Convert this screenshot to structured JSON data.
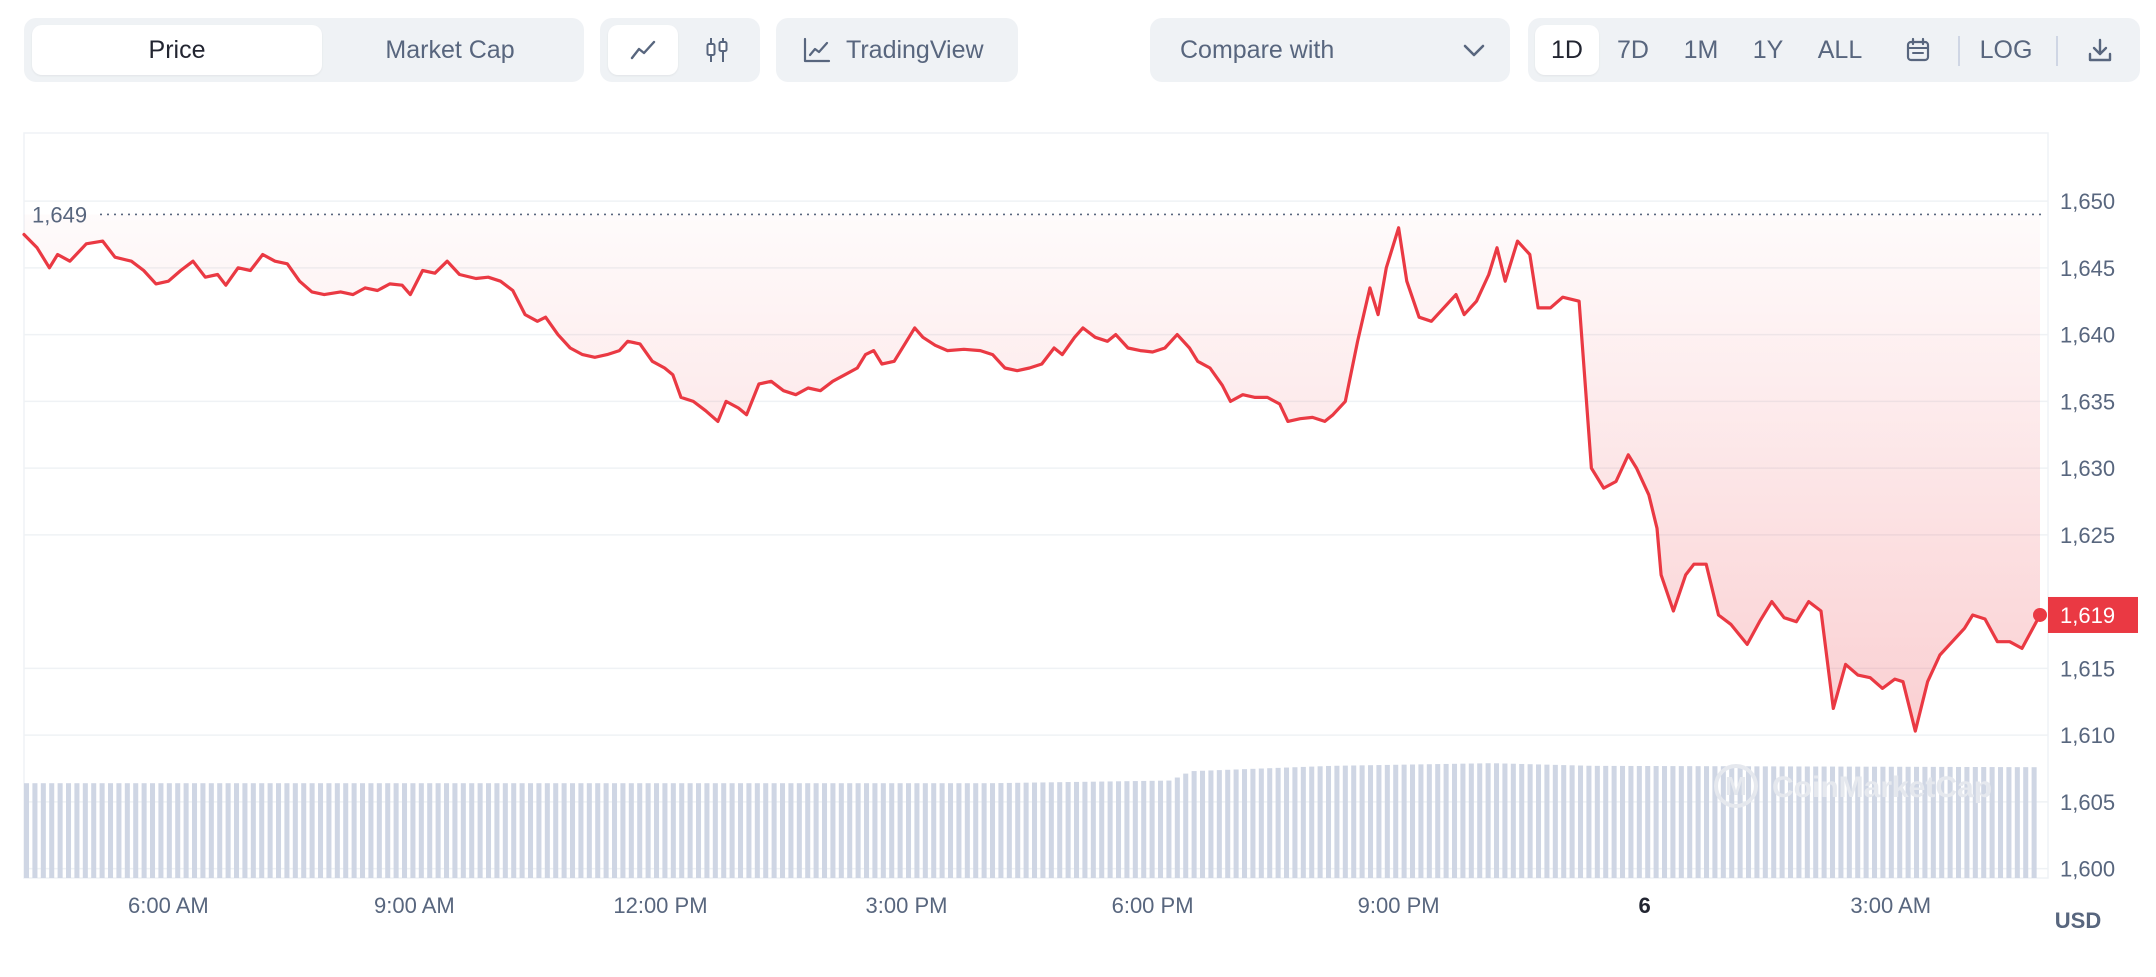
{
  "toolbar": {
    "metric_tabs": [
      {
        "label": "Price",
        "active": true
      },
      {
        "label": "Market Cap",
        "active": false
      }
    ],
    "chart_type_icons": [
      "line-chart-icon",
      "candlestick-icon"
    ],
    "tradingview_label": "TradingView",
    "compare_label": "Compare with",
    "ranges": [
      {
        "label": "1D",
        "active": true
      },
      {
        "label": "7D",
        "active": false
      },
      {
        "label": "1M",
        "active": false
      },
      {
        "label": "1Y",
        "active": false
      },
      {
        "label": "ALL",
        "active": false
      }
    ],
    "log_label": "LOG"
  },
  "colors": {
    "line": "#ea3943",
    "volume": "#cfd6e4",
    "grid": "#eff2f5",
    "axis_text": "#58667e"
  },
  "chart_data": {
    "type": "line",
    "currency_label": "USD",
    "y_ticks": [
      "1,600",
      "1,605",
      "1,610",
      "1,615",
      "1,619",
      "1,625",
      "1,630",
      "1,635",
      "1,640",
      "1,645",
      "1,650"
    ],
    "y_tick_values": [
      1600,
      1605,
      1610,
      1615,
      1625,
      1630,
      1635,
      1640,
      1645,
      1650
    ],
    "ylim": [
      1599.3,
      1655.1
    ],
    "x_ticks": [
      {
        "label": "6:00 AM",
        "t": 6.0
      },
      {
        "label": "9:00 AM",
        "t": 9.0
      },
      {
        "label": "12:00 PM",
        "t": 12.0
      },
      {
        "label": "3:00 PM",
        "t": 15.0
      },
      {
        "label": "6:00 PM",
        "t": 18.0
      },
      {
        "label": "9:00 PM",
        "t": 21.0
      },
      {
        "label": "6",
        "t": 24.0
      },
      {
        "label": "3:00 AM",
        "t": 27.0
      }
    ],
    "xlim": [
      4.24,
      28.82
    ],
    "open_label": "1,649",
    "open_value": 1649,
    "current_label": "1,619",
    "current_value": 1619,
    "series": [
      {
        "points": [
          [
            4.24,
            1647.5
          ],
          [
            4.4,
            1646.5
          ],
          [
            4.55,
            1645.0
          ],
          [
            4.65,
            1646.0
          ],
          [
            4.8,
            1645.5
          ],
          [
            5.0,
            1646.8
          ],
          [
            5.2,
            1647.0
          ],
          [
            5.35,
            1645.8
          ],
          [
            5.55,
            1645.5
          ],
          [
            5.7,
            1644.8
          ],
          [
            5.85,
            1643.8
          ],
          [
            6.0,
            1644.0
          ],
          [
            6.15,
            1644.8
          ],
          [
            6.3,
            1645.5
          ],
          [
            6.45,
            1644.3
          ],
          [
            6.6,
            1644.5
          ],
          [
            6.7,
            1643.7
          ],
          [
            6.85,
            1645.0
          ],
          [
            7.0,
            1644.8
          ],
          [
            7.15,
            1646.0
          ],
          [
            7.3,
            1645.5
          ],
          [
            7.45,
            1645.3
          ],
          [
            7.6,
            1644.0
          ],
          [
            7.75,
            1643.2
          ],
          [
            7.9,
            1643.0
          ],
          [
            8.1,
            1643.2
          ],
          [
            8.25,
            1643.0
          ],
          [
            8.4,
            1643.5
          ],
          [
            8.55,
            1643.3
          ],
          [
            8.7,
            1643.8
          ],
          [
            8.85,
            1643.7
          ],
          [
            8.95,
            1643.0
          ],
          [
            9.1,
            1644.8
          ],
          [
            9.25,
            1644.6
          ],
          [
            9.4,
            1645.5
          ],
          [
            9.55,
            1644.5
          ],
          [
            9.75,
            1644.2
          ],
          [
            9.9,
            1644.3
          ],
          [
            10.05,
            1644.0
          ],
          [
            10.2,
            1643.3
          ],
          [
            10.35,
            1641.5
          ],
          [
            10.5,
            1641.0
          ],
          [
            10.6,
            1641.3
          ],
          [
            10.75,
            1640.0
          ],
          [
            10.9,
            1639.0
          ],
          [
            11.05,
            1638.5
          ],
          [
            11.2,
            1638.3
          ],
          [
            11.35,
            1638.5
          ],
          [
            11.5,
            1638.8
          ],
          [
            11.6,
            1639.5
          ],
          [
            11.75,
            1639.3
          ],
          [
            11.9,
            1638.0
          ],
          [
            12.05,
            1637.5
          ],
          [
            12.15,
            1637.0
          ],
          [
            12.25,
            1635.3
          ],
          [
            12.4,
            1635.0
          ],
          [
            12.55,
            1634.3
          ],
          [
            12.7,
            1633.5
          ],
          [
            12.8,
            1635.0
          ],
          [
            12.95,
            1634.5
          ],
          [
            13.05,
            1634.0
          ],
          [
            13.2,
            1636.3
          ],
          [
            13.35,
            1636.5
          ],
          [
            13.5,
            1635.8
          ],
          [
            13.65,
            1635.5
          ],
          [
            13.8,
            1636.0
          ],
          [
            13.95,
            1635.8
          ],
          [
            14.1,
            1636.5
          ],
          [
            14.25,
            1637.0
          ],
          [
            14.4,
            1637.5
          ],
          [
            14.5,
            1638.5
          ],
          [
            14.6,
            1638.8
          ],
          [
            14.7,
            1637.8
          ],
          [
            14.85,
            1638.0
          ],
          [
            15.0,
            1639.5
          ],
          [
            15.1,
            1640.5
          ],
          [
            15.2,
            1639.8
          ],
          [
            15.35,
            1639.2
          ],
          [
            15.5,
            1638.8
          ],
          [
            15.7,
            1638.9
          ],
          [
            15.9,
            1638.8
          ],
          [
            16.05,
            1638.5
          ],
          [
            16.2,
            1637.5
          ],
          [
            16.35,
            1637.3
          ],
          [
            16.5,
            1637.5
          ],
          [
            16.65,
            1637.8
          ],
          [
            16.8,
            1639.0
          ],
          [
            16.9,
            1638.5
          ],
          [
            17.05,
            1639.8
          ],
          [
            17.15,
            1640.5
          ],
          [
            17.3,
            1639.8
          ],
          [
            17.45,
            1639.5
          ],
          [
            17.55,
            1640.0
          ],
          [
            17.7,
            1639.0
          ],
          [
            17.85,
            1638.8
          ],
          [
            18.0,
            1638.7
          ],
          [
            18.15,
            1639.0
          ],
          [
            18.3,
            1640.0
          ],
          [
            18.45,
            1639.0
          ],
          [
            18.55,
            1638.0
          ],
          [
            18.7,
            1637.5
          ],
          [
            18.85,
            1636.2
          ],
          [
            18.95,
            1635.0
          ],
          [
            19.1,
            1635.5
          ],
          [
            19.25,
            1635.3
          ],
          [
            19.4,
            1635.3
          ],
          [
            19.55,
            1634.8
          ],
          [
            19.65,
            1633.5
          ],
          [
            19.8,
            1633.7
          ],
          [
            19.95,
            1633.8
          ],
          [
            20.1,
            1633.5
          ],
          [
            20.2,
            1634.0
          ],
          [
            20.35,
            1635.0
          ],
          [
            20.5,
            1639.5
          ],
          [
            20.65,
            1643.5
          ],
          [
            20.75,
            1641.5
          ],
          [
            20.85,
            1645.0
          ],
          [
            21.0,
            1648.0
          ],
          [
            21.1,
            1644.0
          ],
          [
            21.25,
            1641.3
          ],
          [
            21.4,
            1641.0
          ],
          [
            21.55,
            1642.0
          ],
          [
            21.7,
            1643.0
          ],
          [
            21.8,
            1641.5
          ],
          [
            21.95,
            1642.5
          ],
          [
            22.1,
            1644.5
          ],
          [
            22.2,
            1646.5
          ],
          [
            22.3,
            1644.0
          ],
          [
            22.45,
            1647.0
          ],
          [
            22.6,
            1646.0
          ],
          [
            22.7,
            1642.0
          ],
          [
            22.85,
            1642.0
          ],
          [
            23.0,
            1642.8
          ],
          [
            23.2,
            1642.5
          ],
          [
            23.35,
            1630.0
          ],
          [
            23.5,
            1628.5
          ],
          [
            23.65,
            1629.0
          ],
          [
            23.8,
            1631.0
          ],
          [
            23.9,
            1630.0
          ],
          [
            24.05,
            1628.0
          ],
          [
            24.15,
            1625.5
          ],
          [
            24.2,
            1622.0
          ],
          [
            24.35,
            1619.3
          ],
          [
            24.5,
            1622.0
          ],
          [
            24.6,
            1622.8
          ],
          [
            24.75,
            1622.8
          ],
          [
            24.9,
            1619.0
          ],
          [
            25.05,
            1618.3
          ],
          [
            25.25,
            1616.8
          ],
          [
            25.4,
            1618.5
          ],
          [
            25.55,
            1620.0
          ],
          [
            25.7,
            1618.8
          ],
          [
            25.85,
            1618.5
          ],
          [
            26.0,
            1620.0
          ],
          [
            26.15,
            1619.3
          ],
          [
            26.3,
            1612.0
          ],
          [
            26.45,
            1615.3
          ],
          [
            26.6,
            1614.5
          ],
          [
            26.75,
            1614.3
          ],
          [
            26.9,
            1613.5
          ],
          [
            27.05,
            1614.2
          ],
          [
            27.15,
            1614.0
          ],
          [
            27.3,
            1610.3
          ],
          [
            27.45,
            1614.0
          ],
          [
            27.6,
            1616.0
          ],
          [
            27.75,
            1617.0
          ],
          [
            27.9,
            1618.0
          ],
          [
            28.0,
            1619.0
          ],
          [
            28.15,
            1618.7
          ],
          [
            28.3,
            1617.0
          ],
          [
            28.45,
            1617.0
          ],
          [
            28.6,
            1616.5
          ],
          [
            28.82,
            1619.0
          ]
        ]
      }
    ],
    "volume": {
      "bar_count": 240,
      "profile": [
        [
          0,
          1606.4
        ],
        [
          0.48,
          1606.4
        ],
        [
          0.57,
          1606.6
        ],
        [
          0.58,
          1607.3
        ],
        [
          0.65,
          1607.7
        ],
        [
          0.73,
          1607.9
        ],
        [
          0.78,
          1607.7
        ],
        [
          1.0,
          1607.6
        ]
      ]
    },
    "watermark": "CoinMarketCap",
    "grid": true
  }
}
